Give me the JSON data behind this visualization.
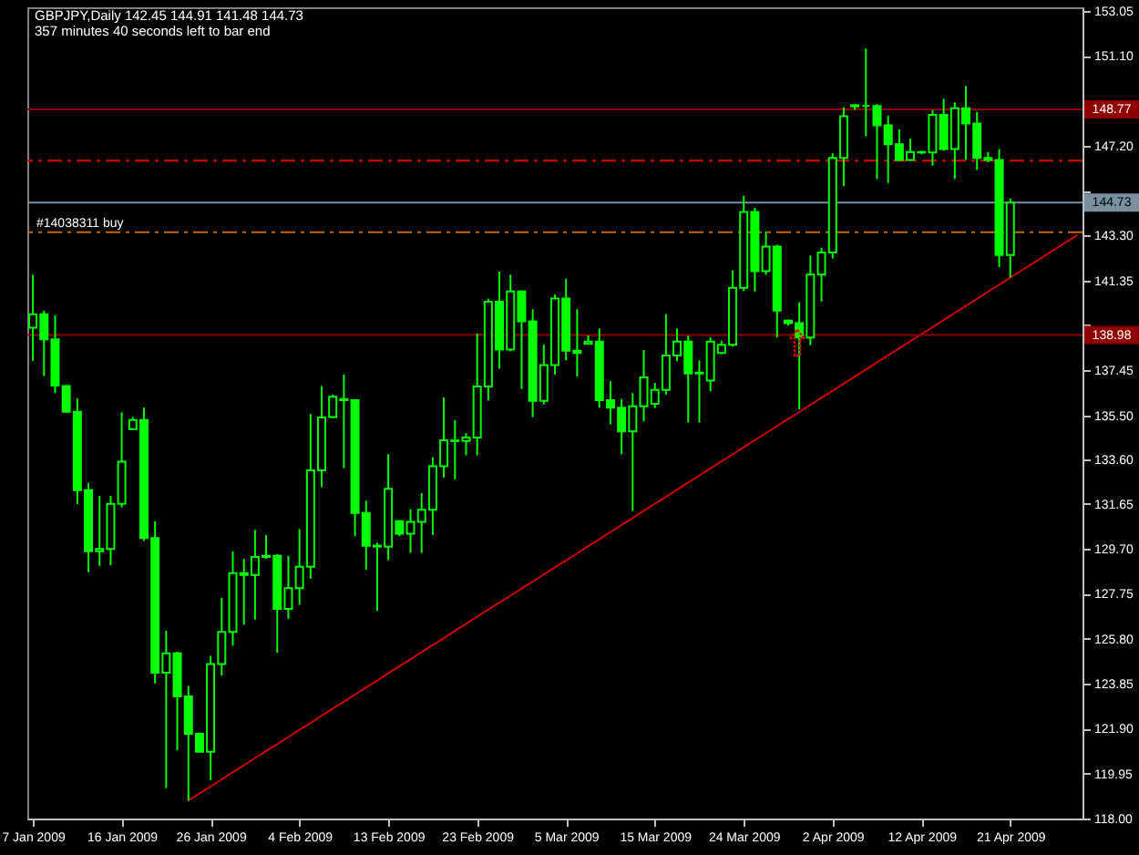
{
  "chart_data": {
    "type": "candlestick",
    "title": "GBPJPY,Daily 142.45 144.91 141.48 144.73",
    "subtitle": "357 minutes 40 seconds left to bar end",
    "categories": [
      "7 Jan 2009",
      null,
      null,
      null,
      null,
      null,
      null,
      null,
      "16 Jan 2009",
      null,
      null,
      null,
      null,
      null,
      null,
      null,
      "26 Jan 2009",
      null,
      null,
      null,
      null,
      null,
      null,
      null,
      "4 Feb 2009",
      null,
      null,
      null,
      null,
      null,
      null,
      null,
      "13 Feb 2009",
      null,
      null,
      null,
      null,
      null,
      null,
      null,
      "23 Feb 2009",
      null,
      null,
      null,
      null,
      null,
      null,
      null,
      "5 Mar 2009",
      null,
      null,
      null,
      null,
      null,
      null,
      null,
      "15 Mar 2009",
      null,
      null,
      null,
      null,
      null,
      null,
      null,
      "24 Mar 2009",
      null,
      null,
      null,
      null,
      null,
      null,
      null,
      "2 Apr 2009",
      null,
      null,
      null,
      null,
      null,
      null,
      null,
      "12 Apr 2009",
      null,
      null,
      null,
      null,
      null,
      null,
      null,
      "21 Apr 2009",
      null,
      null,
      null,
      null,
      null,
      null
    ],
    "ohlc": [
      [
        139.3,
        141.6,
        137.86,
        139.88
      ],
      [
        139.88,
        140.04,
        137.2,
        138.79
      ],
      [
        138.79,
        139.83,
        136.46,
        136.79
      ],
      [
        136.77,
        136.8,
        135.62,
        135.65
      ],
      [
        135.65,
        136.22,
        131.65,
        132.25
      ],
      [
        132.25,
        132.56,
        128.69,
        129.6
      ],
      [
        129.6,
        132.0,
        128.96,
        129.7
      ],
      [
        129.7,
        132.0,
        129.0,
        131.65
      ],
      [
        131.65,
        135.62,
        131.5,
        133.48
      ],
      [
        134.9,
        135.42,
        134.9,
        135.29
      ],
      [
        135.29,
        135.83,
        130.05,
        130.17
      ],
      [
        130.17,
        130.9,
        123.86,
        124.33
      ],
      [
        124.33,
        126.15,
        119.32,
        125.17
      ],
      [
        125.17,
        125.24,
        120.96,
        123.3
      ],
      [
        123.3,
        123.76,
        118.78,
        121.68
      ],
      [
        121.68,
        121.74,
        120.88,
        120.9
      ],
      [
        120.9,
        125.06,
        119.66,
        124.7
      ],
      [
        124.7,
        127.58,
        124.21,
        126.1
      ],
      [
        126.1,
        129.6,
        125.5,
        128.65
      ],
      [
        128.65,
        129.27,
        126.41,
        128.57
      ],
      [
        128.57,
        130.52,
        126.64,
        129.35
      ],
      [
        129.35,
        130.3,
        129.27,
        129.4
      ],
      [
        129.4,
        129.47,
        125.19,
        127.1
      ],
      [
        127.1,
        129.39,
        126.67,
        128.0
      ],
      [
        128.0,
        130.56,
        127.27,
        128.93
      ],
      [
        128.93,
        135.55,
        128.41,
        133.11
      ],
      [
        133.11,
        136.77,
        132.38,
        135.4
      ],
      [
        135.42,
        136.4,
        135.37,
        136.3
      ],
      [
        136.2,
        137.26,
        133.2,
        136.15
      ],
      [
        136.15,
        136.2,
        130.25,
        131.26
      ],
      [
        131.26,
        131.79,
        128.8,
        129.84
      ],
      [
        129.84,
        129.97,
        127.01,
        129.8
      ],
      [
        129.8,
        133.81,
        129.21,
        132.31
      ],
      [
        130.9,
        130.95,
        130.25,
        130.36
      ],
      [
        130.36,
        131.42,
        129.53,
        130.87
      ],
      [
        130.87,
        132.12,
        129.53,
        131.4
      ],
      [
        131.4,
        133.68,
        130.31,
        133.29
      ],
      [
        133.29,
        136.28,
        132.8,
        134.41
      ],
      [
        134.41,
        135.29,
        132.72,
        134.38
      ],
      [
        134.38,
        134.72,
        133.76,
        134.53
      ],
      [
        134.53,
        139.05,
        133.76,
        136.75
      ],
      [
        136.75,
        140.56,
        136.15,
        140.43
      ],
      [
        140.43,
        141.73,
        137.52,
        138.35
      ],
      [
        138.35,
        141.6,
        138.28,
        140.87
      ],
      [
        140.87,
        140.92,
        136.64,
        139.57
      ],
      [
        139.57,
        140.1,
        135.42,
        136.12
      ],
      [
        136.12,
        138.56,
        135.97,
        137.68
      ],
      [
        137.68,
        140.74,
        137.26,
        140.56
      ],
      [
        140.56,
        141.42,
        137.88,
        138.3
      ],
      [
        138.3,
        140.1,
        137.18,
        138.2
      ],
      [
        138.6,
        138.97,
        138.58,
        138.69
      ],
      [
        138.69,
        139.26,
        135.83,
        136.15
      ],
      [
        136.15,
        136.98,
        135.11,
        135.83
      ],
      [
        135.83,
        136.2,
        133.81,
        134.8
      ],
      [
        134.8,
        136.46,
        131.34,
        135.89
      ],
      [
        135.89,
        138.33,
        135.24,
        137.14
      ],
      [
        136.0,
        136.9,
        135.81,
        136.6
      ],
      [
        136.6,
        139.88,
        136.4,
        138.09
      ],
      [
        138.09,
        139.26,
        137.84,
        138.69
      ],
      [
        138.69,
        138.95,
        135.19,
        137.31
      ],
      [
        137.31,
        137.88,
        135.19,
        137.35
      ],
      [
        137.0,
        138.87,
        136.54,
        138.69
      ],
      [
        138.2,
        138.74,
        138.15,
        138.56
      ],
      [
        138.56,
        141.78,
        138.48,
        141.03
      ],
      [
        141.03,
        145.02,
        140.9,
        144.32
      ],
      [
        144.32,
        144.5,
        140.87,
        141.75
      ],
      [
        141.75,
        143.47,
        141.6,
        142.82
      ],
      [
        142.82,
        142.9,
        138.87,
        140.04
      ],
      [
        139.6,
        139.65,
        139.39,
        139.5
      ],
      [
        139.5,
        140.4,
        135.76,
        138.87
      ],
      [
        138.87,
        142.43,
        138.54,
        141.6
      ],
      [
        141.6,
        142.77,
        140.43,
        142.56
      ],
      [
        142.56,
        146.87,
        142.3,
        146.66
      ],
      [
        146.66,
        148.86,
        145.44,
        148.47
      ],
      [
        148.9,
        149.0,
        148.75,
        148.95
      ],
      [
        148.92,
        151.41,
        147.6,
        148.92
      ],
      [
        148.92,
        149.0,
        145.75,
        148.08
      ],
      [
        148.08,
        148.5,
        145.57,
        147.26
      ],
      [
        147.26,
        147.9,
        146.53,
        146.58
      ],
      [
        146.58,
        147.5,
        146.53,
        146.92
      ],
      [
        146.92,
        146.97,
        146.82,
        146.9
      ],
      [
        146.9,
        148.74,
        146.33,
        148.53
      ],
      [
        148.53,
        149.23,
        146.97,
        147.05
      ],
      [
        147.05,
        149.08,
        145.75,
        148.82
      ],
      [
        148.82,
        149.78,
        146.58,
        148.16
      ],
      [
        148.16,
        148.66,
        146.14,
        146.66
      ],
      [
        146.66,
        146.92,
        146.48,
        146.58
      ],
      [
        146.58,
        147.05,
        141.93,
        142.45
      ],
      [
        142.45,
        144.91,
        141.48,
        144.73
      ],
      null,
      null,
      null,
      null,
      null,
      null
    ],
    "color": "#00ff00",
    "ylim": [
      118.0,
      153.2
    ],
    "yticks": [
      153.05,
      {
        "value": 151.1,
        "label": "151.10"
      },
      {
        "value": 149.15,
        "label": null
      },
      {
        "value": 147.2,
        "label": "147.20"
      },
      {
        "value": 145.25,
        "label": null
      },
      {
        "value": 143.3,
        "label": "143.30"
      },
      141.35,
      {
        "value": 139.4,
        "label": null
      },
      137.45,
      {
        "value": 135.5,
        "label": "135.50"
      },
      {
        "value": 133.6,
        "label": "133.60"
      },
      131.65,
      {
        "value": 129.7,
        "label": "129.70"
      },
      127.75,
      {
        "value": 125.8,
        "label": "125.80"
      },
      123.85,
      {
        "value": 121.9,
        "label": "121.90"
      },
      119.95,
      {
        "value": 118.0,
        "label": "118.00"
      }
    ],
    "ref_lines": [
      {
        "axis": "y",
        "value": 148.77,
        "label": "148.77",
        "color": "#900000"
      },
      {
        "axis": "y",
        "value": 146.55,
        "color": "#e00000",
        "line_style": "dashed"
      },
      {
        "axis": "y",
        "value": 144.73,
        "label": "144.73",
        "color": "#7890a0"
      },
      {
        "axis": "y",
        "value": 143.44,
        "label": "#14038311 buy",
        "color": "#c86400",
        "line_style": "dashed"
      },
      {
        "axis": "y",
        "value": 138.98,
        "label": "138.98",
        "color": "#900000"
      }
    ],
    "series": [
      {
        "type": "line",
        "color": "#d00000",
        "values": [
          null,
          null,
          null,
          null,
          null,
          null,
          null,
          null,
          null,
          null,
          null,
          null,
          null,
          null,
          118.78,
          119.09,
          119.39,
          119.7,
          120.01,
          120.31,
          120.62,
          120.93,
          121.23,
          121.54,
          121.85,
          122.15,
          122.46,
          122.77,
          123.07,
          123.38,
          123.69,
          123.99,
          124.3,
          124.61,
          124.91,
          125.22,
          125.53,
          125.83,
          126.14,
          126.45,
          126.76,
          127.06,
          127.37,
          127.67,
          127.98,
          128.28,
          128.59,
          128.9,
          129.2,
          129.51,
          129.82,
          130.12,
          130.43,
          130.74,
          131.04,
          131.35,
          131.66,
          131.96,
          132.27,
          132.58,
          132.88,
          133.19,
          133.5,
          133.8,
          134.11,
          134.42,
          134.72,
          135.03,
          135.34,
          135.64,
          135.95,
          136.26,
          136.56,
          136.87,
          137.18,
          137.48,
          137.79,
          138.1,
          138.4,
          138.71,
          139.02,
          139.32,
          139.63,
          139.94,
          140.24,
          140.55,
          140.86,
          141.16,
          141.47,
          141.78,
          142.08,
          142.39,
          142.7,
          143.0,
          143.31
        ]
      }
    ]
  }
}
